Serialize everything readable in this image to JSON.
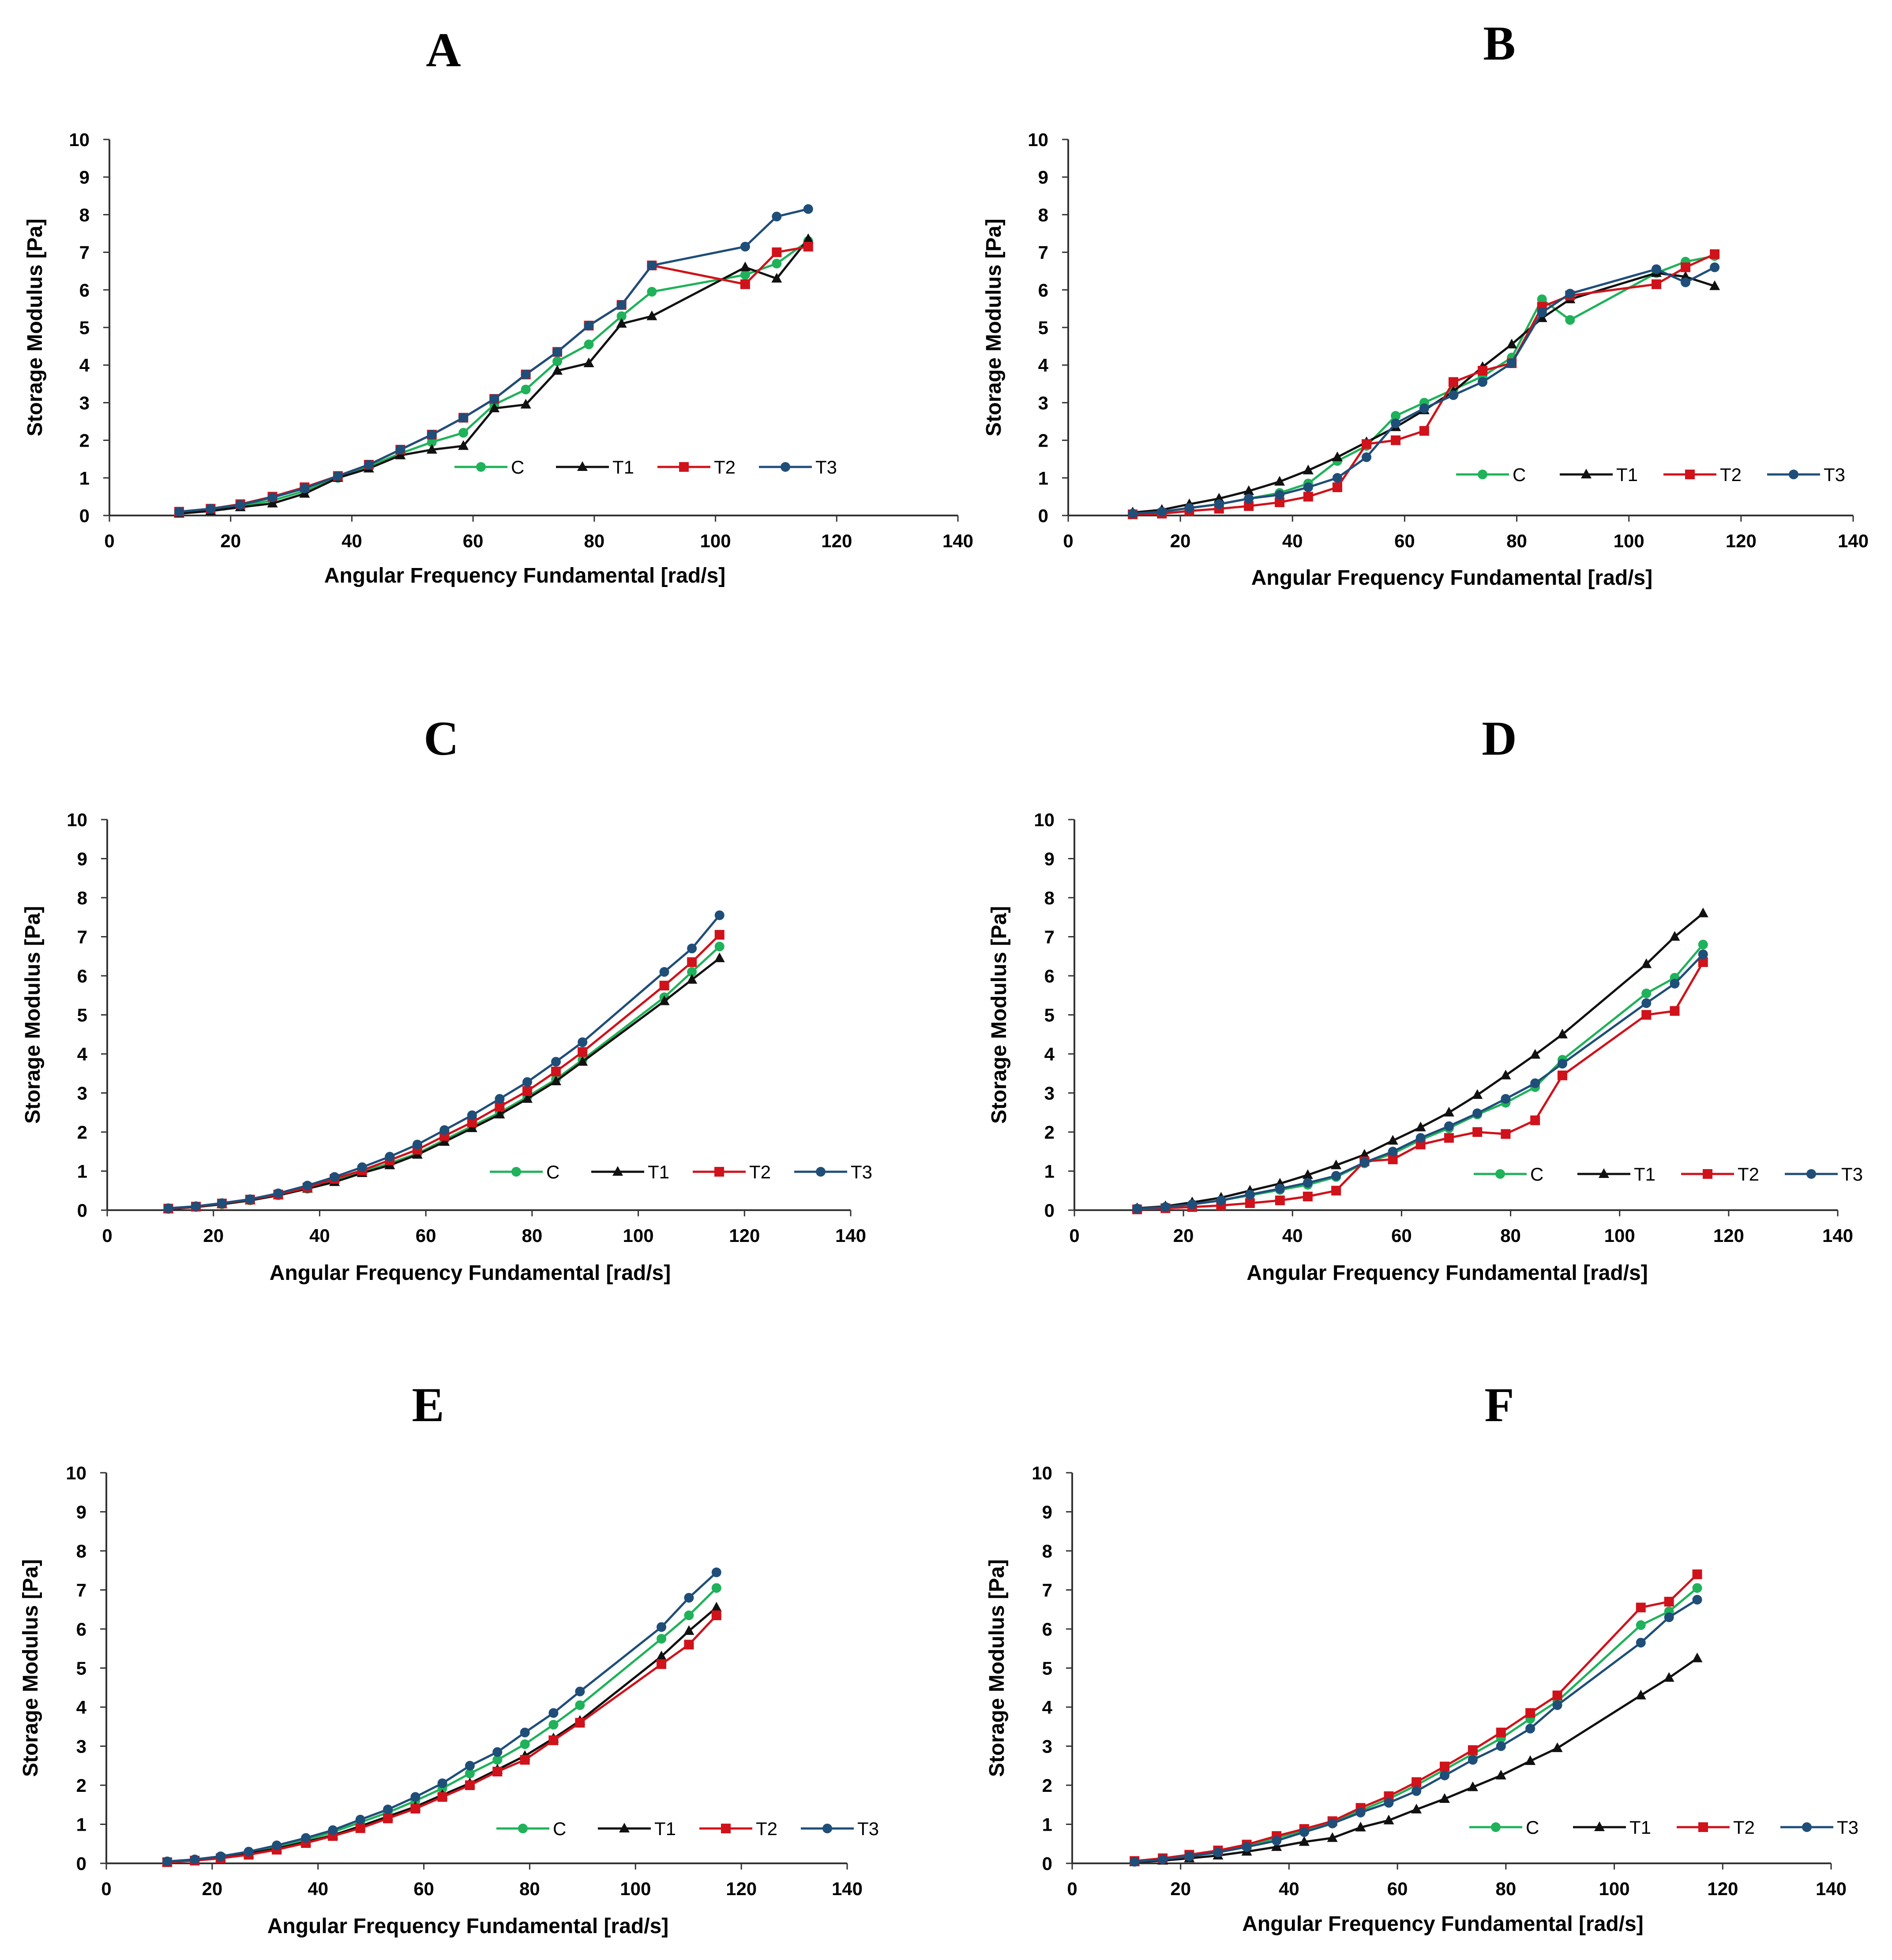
{
  "colors": {
    "C": "#1fb25a",
    "T1": "#111111",
    "T2": "#d0121b",
    "T3": "#1f4e79"
  },
  "markers": {
    "C": "circle",
    "T1": "triangle",
    "T2": "square",
    "T3": "circle"
  },
  "chart_data": [
    {
      "type": "line",
      "panel": "A",
      "xlabel": "Angular Frequency Fundamental [rad/s]",
      "ylabel": "Storage  Modulus [Pa]",
      "xlim": [
        0,
        140
      ],
      "ylim": [
        0,
        10
      ],
      "xticks": [
        0,
        20,
        40,
        60,
        80,
        100,
        120,
        140
      ],
      "yticks": [
        0,
        1,
        2,
        3,
        4,
        5,
        6,
        7,
        8,
        9,
        10
      ],
      "legend": "bottom-right",
      "x": [
        11.5,
        16.7,
        21.6,
        26.9,
        32.2,
        37.7,
        42.8,
        48.0,
        53.2,
        58.4,
        63.5,
        68.7,
        73.9,
        79.1,
        84.5,
        89.5,
        104.9,
        110.1,
        115.3
      ],
      "series": [
        {
          "name": "C",
          "values": [
            0.08,
            0.15,
            0.25,
            0.4,
            0.65,
            1.0,
            1.3,
            1.65,
            1.95,
            2.2,
            2.95,
            3.35,
            4.1,
            4.55,
            5.3,
            5.95,
            6.4,
            6.7,
            7.3
          ]
        },
        {
          "name": "T1",
          "values": [
            0.05,
            0.12,
            0.22,
            0.32,
            0.58,
            1.0,
            1.25,
            1.6,
            1.75,
            1.85,
            2.85,
            2.95,
            3.85,
            4.05,
            5.1,
            5.3,
            6.6,
            6.3,
            7.35
          ]
        },
        {
          "name": "T2",
          "values": [
            0.1,
            0.18,
            0.3,
            0.5,
            0.75,
            1.05,
            1.35,
            1.75,
            2.15,
            2.6,
            3.1,
            3.75,
            4.35,
            5.05,
            5.6,
            6.65,
            6.15,
            7.0,
            7.15
          ]
        },
        {
          "name": "T3",
          "values": [
            0.1,
            0.18,
            0.28,
            0.48,
            0.72,
            1.05,
            1.35,
            1.75,
            2.15,
            2.6,
            3.1,
            3.75,
            4.35,
            5.05,
            5.6,
            6.65,
            7.15,
            7.95,
            8.15
          ]
        }
      ]
    },
    {
      "type": "line",
      "panel": "B",
      "xlabel": "Angular Frequency Fundamental [rad/s]",
      "ylabel": "Storage  Modulus [Pa]",
      "xlim": [
        0,
        140
      ],
      "ylim": [
        0,
        10
      ],
      "xticks": [
        0,
        20,
        40,
        60,
        80,
        100,
        120,
        140
      ],
      "yticks": [
        0,
        1,
        2,
        3,
        4,
        5,
        6,
        7,
        8,
        9,
        10
      ],
      "legend": "bottom-right",
      "x": [
        11.5,
        16.7,
        21.6,
        26.9,
        32.2,
        37.7,
        42.8,
        48.0,
        53.2,
        58.4,
        63.5,
        68.7,
        73.9,
        79.1,
        84.5,
        89.5,
        104.9,
        110.1,
        115.3
      ],
      "series": [
        {
          "name": "C",
          "values": [
            0.05,
            0.1,
            0.2,
            0.3,
            0.45,
            0.6,
            0.85,
            1.45,
            1.85,
            2.65,
            3.0,
            3.35,
            3.7,
            4.2,
            5.75,
            5.2,
            6.45,
            6.75,
            6.9
          ]
        },
        {
          "name": "T1",
          "values": [
            0.08,
            0.15,
            0.3,
            0.45,
            0.65,
            0.9,
            1.2,
            1.55,
            1.95,
            2.35,
            2.8,
            3.3,
            3.95,
            4.55,
            5.25,
            5.75,
            6.45,
            6.35,
            6.1
          ]
        },
        {
          "name": "T2",
          "values": [
            0.03,
            0.05,
            0.12,
            0.18,
            0.25,
            0.35,
            0.5,
            0.75,
            1.9,
            2.0,
            2.25,
            3.55,
            3.85,
            4.05,
            5.55,
            5.85,
            6.15,
            6.6,
            6.95
          ]
        },
        {
          "name": "T3",
          "values": [
            0.05,
            0.1,
            0.2,
            0.3,
            0.45,
            0.55,
            0.75,
            1.0,
            1.55,
            2.45,
            2.85,
            3.2,
            3.55,
            4.05,
            5.4,
            5.9,
            6.55,
            6.2,
            6.6
          ]
        }
      ]
    },
    {
      "type": "line",
      "panel": "C",
      "xlabel": "Angular Frequency Fundamental [rad/s]",
      "ylabel": "Storage  Modulus [Pa]",
      "xlim": [
        0,
        140
      ],
      "ylim": [
        0,
        10
      ],
      "xticks": [
        0,
        20,
        40,
        60,
        80,
        100,
        120,
        140
      ],
      "yticks": [
        0,
        1,
        2,
        3,
        4,
        5,
        6,
        7,
        8,
        9,
        10
      ],
      "legend": "bottom-right",
      "x": [
        11.5,
        16.7,
        21.6,
        26.9,
        32.2,
        37.7,
        42.8,
        48.0,
        53.2,
        58.4,
        63.5,
        68.7,
        73.9,
        79.1,
        84.5,
        89.5,
        104.9,
        110.1,
        115.3
      ],
      "series": [
        {
          "name": "C",
          "values": [
            0.03,
            0.08,
            0.15,
            0.25,
            0.38,
            0.55,
            0.75,
            0.98,
            1.2,
            1.45,
            1.8,
            2.15,
            2.5,
            2.9,
            3.35,
            3.85,
            5.45,
            6.1,
            6.75
          ]
        },
        {
          "name": "T1",
          "values": [
            0.03,
            0.08,
            0.15,
            0.25,
            0.38,
            0.55,
            0.72,
            0.95,
            1.15,
            1.42,
            1.75,
            2.1,
            2.45,
            2.85,
            3.3,
            3.8,
            5.35,
            5.9,
            6.45
          ]
        },
        {
          "name": "T2",
          "values": [
            0.04,
            0.09,
            0.17,
            0.27,
            0.4,
            0.58,
            0.8,
            1.02,
            1.28,
            1.55,
            1.9,
            2.25,
            2.65,
            3.05,
            3.55,
            4.05,
            5.75,
            6.35,
            7.05
          ]
        },
        {
          "name": "T3",
          "values": [
            0.05,
            0.1,
            0.18,
            0.28,
            0.43,
            0.63,
            0.85,
            1.1,
            1.37,
            1.68,
            2.05,
            2.43,
            2.85,
            3.28,
            3.8,
            4.3,
            6.1,
            6.7,
            7.55
          ]
        }
      ]
    },
    {
      "type": "line",
      "panel": "D",
      "xlabel": "Angular Frequency Fundamental [rad/s]",
      "ylabel": "Storage  Modulus [Pa]",
      "xlim": [
        0,
        140
      ],
      "ylim": [
        0,
        10
      ],
      "xticks": [
        0,
        20,
        40,
        60,
        80,
        100,
        120,
        140
      ],
      "yticks": [
        0,
        1,
        2,
        3,
        4,
        5,
        6,
        7,
        8,
        9,
        10
      ],
      "legend": "bottom-right",
      "x": [
        11.5,
        16.7,
        21.6,
        26.9,
        32.2,
        37.7,
        42.8,
        48.0,
        53.2,
        58.4,
        63.5,
        68.7,
        73.9,
        79.1,
        84.5,
        89.5,
        104.9,
        110.1,
        115.3
      ],
      "series": [
        {
          "name": "C",
          "values": [
            0.04,
            0.08,
            0.15,
            0.25,
            0.38,
            0.52,
            0.65,
            0.85,
            1.2,
            1.45,
            1.8,
            2.1,
            2.45,
            2.75,
            3.15,
            3.85,
            5.55,
            5.95,
            6.8
          ]
        },
        {
          "name": "T1",
          "values": [
            0.05,
            0.1,
            0.2,
            0.32,
            0.5,
            0.68,
            0.9,
            1.15,
            1.42,
            1.78,
            2.12,
            2.5,
            2.95,
            3.45,
            3.98,
            4.5,
            6.3,
            7.0,
            7.6
          ]
        },
        {
          "name": "T2",
          "values": [
            0.02,
            0.05,
            0.08,
            0.12,
            0.18,
            0.25,
            0.35,
            0.5,
            1.25,
            1.3,
            1.68,
            1.85,
            2.0,
            1.95,
            2.3,
            3.45,
            5.0,
            5.1,
            6.35
          ]
        },
        {
          "name": "T3",
          "values": [
            0.04,
            0.08,
            0.15,
            0.25,
            0.4,
            0.55,
            0.7,
            0.88,
            1.22,
            1.5,
            1.85,
            2.15,
            2.48,
            2.85,
            3.25,
            3.75,
            5.3,
            5.8,
            6.55
          ]
        }
      ]
    },
    {
      "type": "line",
      "panel": "E",
      "xlabel": "Angular Frequency Fundamental [rad/s]",
      "ylabel": "Storage  Modulus [Pa]",
      "xlim": [
        0,
        140
      ],
      "ylim": [
        0,
        10
      ],
      "xticks": [
        0,
        20,
        40,
        60,
        80,
        100,
        120,
        140
      ],
      "yticks": [
        0,
        1,
        2,
        3,
        4,
        5,
        6,
        7,
        8,
        9,
        10
      ],
      "legend": "bottom-right",
      "x": [
        11.5,
        16.7,
        21.6,
        26.9,
        32.2,
        37.7,
        42.8,
        48.0,
        53.2,
        58.4,
        63.5,
        68.7,
        73.9,
        79.1,
        84.5,
        89.5,
        104.9,
        110.1,
        115.3
      ],
      "series": [
        {
          "name": "C",
          "values": [
            0.04,
            0.09,
            0.17,
            0.28,
            0.42,
            0.6,
            0.8,
            1.05,
            1.3,
            1.6,
            1.92,
            2.3,
            2.65,
            3.05,
            3.55,
            4.05,
            5.75,
            6.35,
            7.05
          ]
        },
        {
          "name": "T1",
          "values": [
            0.03,
            0.08,
            0.15,
            0.25,
            0.38,
            0.55,
            0.72,
            0.95,
            1.2,
            1.45,
            1.75,
            2.05,
            2.4,
            2.75,
            3.2,
            3.65,
            5.3,
            5.95,
            6.55
          ]
        },
        {
          "name": "T2",
          "values": [
            0.03,
            0.07,
            0.13,
            0.22,
            0.35,
            0.52,
            0.7,
            0.9,
            1.15,
            1.4,
            1.7,
            2.0,
            2.35,
            2.65,
            3.15,
            3.6,
            5.1,
            5.6,
            6.35
          ]
        },
        {
          "name": "T3",
          "values": [
            0.05,
            0.1,
            0.18,
            0.3,
            0.46,
            0.65,
            0.85,
            1.12,
            1.38,
            1.7,
            2.05,
            2.5,
            2.85,
            3.35,
            3.85,
            4.4,
            6.05,
            6.8,
            7.45
          ]
        }
      ]
    },
    {
      "type": "line",
      "panel": "F",
      "xlabel": "Angular Frequency Fundamental [rad/s]",
      "ylabel": "Storage  Modulus [Pa]",
      "xlim": [
        0,
        140
      ],
      "ylim": [
        0,
        10
      ],
      "xticks": [
        0,
        20,
        40,
        60,
        80,
        100,
        120,
        140
      ],
      "yticks": [
        0,
        1,
        2,
        3,
        4,
        5,
        6,
        7,
        8,
        9,
        10
      ],
      "legend": "bottom-right",
      "x": [
        11.5,
        16.7,
        21.6,
        26.9,
        32.2,
        37.7,
        42.8,
        48.0,
        53.2,
        58.4,
        63.5,
        68.7,
        73.9,
        79.1,
        84.5,
        89.5,
        104.9,
        110.1,
        115.3
      ],
      "series": [
        {
          "name": "C",
          "values": [
            0.05,
            0.12,
            0.2,
            0.3,
            0.45,
            0.65,
            0.85,
            1.05,
            1.35,
            1.65,
            2.0,
            2.4,
            2.8,
            3.2,
            3.7,
            4.15,
            6.1,
            6.45,
            7.05
          ]
        },
        {
          "name": "T1",
          "values": [
            0.03,
            0.07,
            0.13,
            0.2,
            0.3,
            0.42,
            0.55,
            0.65,
            0.92,
            1.1,
            1.38,
            1.65,
            1.95,
            2.25,
            2.62,
            2.95,
            4.3,
            4.75,
            5.25
          ]
        },
        {
          "name": "T2",
          "values": [
            0.06,
            0.13,
            0.22,
            0.33,
            0.48,
            0.7,
            0.88,
            1.08,
            1.42,
            1.72,
            2.08,
            2.48,
            2.9,
            3.35,
            3.85,
            4.3,
            6.55,
            6.7,
            7.4
          ]
        },
        {
          "name": "T3",
          "values": [
            0.04,
            0.1,
            0.18,
            0.28,
            0.42,
            0.58,
            0.8,
            1.02,
            1.3,
            1.55,
            1.85,
            2.25,
            2.65,
            3.0,
            3.45,
            4.05,
            5.65,
            6.3,
            6.75
          ]
        }
      ]
    }
  ]
}
